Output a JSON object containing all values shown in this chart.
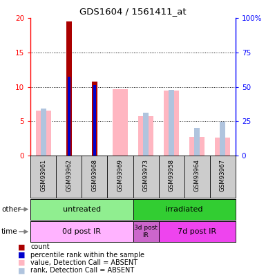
{
  "title": "GDS1604 / 1561411_at",
  "samples": [
    "GSM93961",
    "GSM93962",
    "GSM93968",
    "GSM93969",
    "GSM93973",
    "GSM93958",
    "GSM93964",
    "GSM93967"
  ],
  "count_values": [
    0,
    19.5,
    10.8,
    0,
    0,
    0,
    0,
    0
  ],
  "percentile_rank_values": [
    0,
    11.5,
    10.3,
    0,
    0,
    0,
    0,
    0
  ],
  "value_absent": [
    6.5,
    0,
    0,
    9.7,
    5.7,
    9.5,
    2.7,
    2.6
  ],
  "rank_absent": [
    6.8,
    0,
    0,
    0,
    6.2,
    9.6,
    4.0,
    4.9
  ],
  "other_groups": [
    {
      "label": "untreated",
      "start": 0,
      "end": 4,
      "color": "#90ee90"
    },
    {
      "label": "irradiated",
      "start": 4,
      "end": 8,
      "color": "#32cd32"
    }
  ],
  "time_groups": [
    {
      "label": "0d post IR",
      "start": 0,
      "end": 4,
      "color": "#ffb3ff"
    },
    {
      "label": "3d post\nIR",
      "start": 4,
      "end": 5,
      "color": "#cc66cc"
    },
    {
      "label": "7d post IR",
      "start": 5,
      "end": 8,
      "color": "#ee44ee"
    }
  ],
  "ylim_left": [
    0,
    20
  ],
  "ylim_right": [
    0,
    100
  ],
  "yticks_left": [
    0,
    5,
    10,
    15,
    20
  ],
  "yticks_right": [
    0,
    25,
    50,
    75,
    100
  ],
  "ytick_labels_left": [
    "0",
    "5",
    "10",
    "15",
    "20"
  ],
  "ytick_labels_right": [
    "0",
    "25",
    "50",
    "75",
    "100%"
  ],
  "count_color": "#aa0000",
  "percentile_color": "#0000cc",
  "value_absent_color": "#ffb6c1",
  "rank_absent_color": "#b0c4de",
  "bg_color": "#cccccc"
}
